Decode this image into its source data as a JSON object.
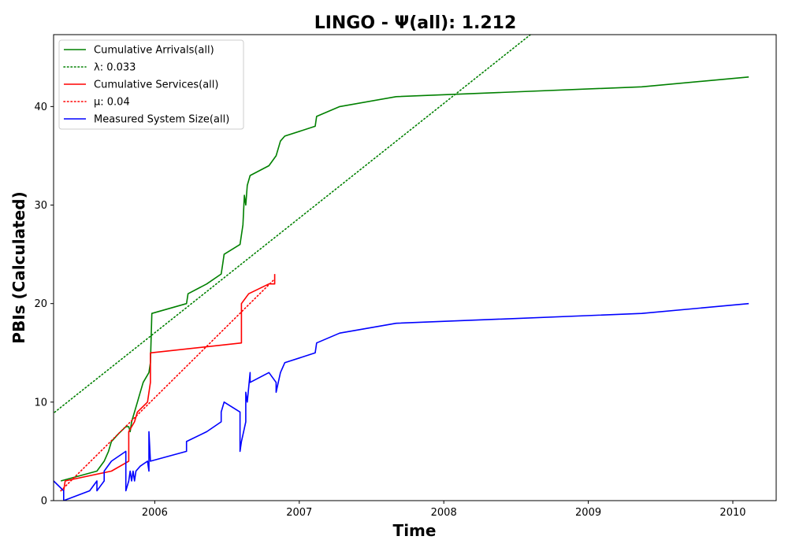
{
  "chart_data": {
    "type": "line",
    "title": "LINGO -  Ψ(all): 1.212",
    "xlabel": "Time",
    "ylabel": "PBIs (Calculated)",
    "xlim": [
      2005.3,
      2010.3
    ],
    "ylim": [
      0,
      47.3
    ],
    "x_ticks": [
      {
        "value": 2006,
        "label": "2006"
      },
      {
        "value": 2007,
        "label": "2007"
      },
      {
        "value": 2008,
        "label": "2008"
      },
      {
        "value": 2009,
        "label": "2009"
      },
      {
        "value": 2010,
        "label": "2010"
      }
    ],
    "y_ticks": [
      {
        "value": 0,
        "label": "0"
      },
      {
        "value": 10,
        "label": "10"
      },
      {
        "value": 20,
        "label": "20"
      },
      {
        "value": 30,
        "label": "30"
      },
      {
        "value": 40,
        "label": "40"
      }
    ],
    "legend_position": "top-left",
    "series": [
      {
        "name": "Cumulative Arrivals(all)",
        "legend": "Cumulative Arrivals(all)",
        "color": "#008000",
        "style": "solid",
        "points": [
          [
            2005.35,
            2
          ],
          [
            2005.6,
            3
          ],
          [
            2005.65,
            4
          ],
          [
            2005.68,
            5
          ],
          [
            2005.7,
            6
          ],
          [
            2005.75,
            6.8
          ],
          [
            2005.8,
            7.5
          ],
          [
            2005.82,
            7.5
          ],
          [
            2005.83,
            7
          ],
          [
            2005.84,
            8
          ],
          [
            2005.86,
            9
          ],
          [
            2005.88,
            10
          ],
          [
            2005.9,
            11
          ],
          [
            2005.92,
            12
          ],
          [
            2005.96,
            13
          ],
          [
            2005.97,
            14
          ],
          [
            2005.98,
            19
          ],
          [
            2006.22,
            20
          ],
          [
            2006.23,
            21
          ],
          [
            2006.36,
            22
          ],
          [
            2006.46,
            23
          ],
          [
            2006.47,
            24
          ],
          [
            2006.48,
            25
          ],
          [
            2006.59,
            26
          ],
          [
            2006.61,
            28
          ],
          [
            2006.62,
            31
          ],
          [
            2006.63,
            30
          ],
          [
            2006.64,
            32
          ],
          [
            2006.66,
            33
          ],
          [
            2006.79,
            34
          ],
          [
            2006.84,
            35
          ],
          [
            2006.87,
            36.5
          ],
          [
            2006.9,
            37
          ],
          [
            2007.11,
            38
          ],
          [
            2007.12,
            39
          ],
          [
            2007.28,
            40
          ],
          [
            2007.67,
            41
          ],
          [
            2009.37,
            42
          ],
          [
            2010.11,
            43
          ]
        ]
      },
      {
        "name": "lambda-fit",
        "legend": "λ: 0.033",
        "color": "#008000",
        "style": "dotted",
        "points": [
          [
            2005.25,
            8.3
          ],
          [
            2008.6,
            47.3
          ]
        ]
      },
      {
        "name": "Cumulative Services(all)",
        "legend": "Cumulative Services(all)",
        "color": "#ff0000",
        "style": "solid",
        "points": [
          [
            2005.37,
            1
          ],
          [
            2005.38,
            2
          ],
          [
            2005.7,
            3
          ],
          [
            2005.82,
            4
          ],
          [
            2005.82,
            7
          ],
          [
            2005.86,
            8
          ],
          [
            2005.88,
            9
          ],
          [
            2005.95,
            10
          ],
          [
            2005.97,
            12
          ],
          [
            2005.97,
            15
          ],
          [
            2006.6,
            16
          ],
          [
            2006.6,
            20
          ],
          [
            2006.65,
            21
          ],
          [
            2006.79,
            22
          ],
          [
            2006.83,
            22
          ],
          [
            2006.83,
            23
          ]
        ]
      },
      {
        "name": "mu-fit",
        "legend": "μ: 0.04",
        "color": "#ff0000",
        "style": "dotted",
        "points": [
          [
            2005.35,
            1
          ],
          [
            2006.83,
            22.5
          ]
        ]
      },
      {
        "name": "Measured System Size(all)",
        "legend": "Measured System Size(all)",
        "color": "#0000ff",
        "style": "solid",
        "points": [
          [
            2005.25,
            1
          ],
          [
            2005.3,
            2
          ],
          [
            2005.37,
            1
          ],
          [
            2005.37,
            0
          ],
          [
            2005.55,
            1
          ],
          [
            2005.6,
            2
          ],
          [
            2005.6,
            1
          ],
          [
            2005.65,
            2
          ],
          [
            2005.65,
            3
          ],
          [
            2005.7,
            4
          ],
          [
            2005.8,
            5
          ],
          [
            2005.8,
            1
          ],
          [
            2005.82,
            2
          ],
          [
            2005.83,
            3
          ],
          [
            2005.84,
            2
          ],
          [
            2005.85,
            3
          ],
          [
            2005.86,
            2
          ],
          [
            2005.87,
            3
          ],
          [
            2005.9,
            3.5
          ],
          [
            2005.95,
            4
          ],
          [
            2005.96,
            3
          ],
          [
            2005.96,
            7
          ],
          [
            2005.97,
            4
          ],
          [
            2006.22,
            5
          ],
          [
            2006.22,
            6
          ],
          [
            2006.36,
            7
          ],
          [
            2006.46,
            8
          ],
          [
            2006.46,
            9
          ],
          [
            2006.48,
            10
          ],
          [
            2006.59,
            9
          ],
          [
            2006.59,
            5
          ],
          [
            2006.6,
            6
          ],
          [
            2006.63,
            8
          ],
          [
            2006.63,
            11
          ],
          [
            2006.64,
            10
          ],
          [
            2006.66,
            13
          ],
          [
            2006.66,
            12
          ],
          [
            2006.79,
            13
          ],
          [
            2006.84,
            12
          ],
          [
            2006.84,
            11
          ],
          [
            2006.87,
            13
          ],
          [
            2006.9,
            14
          ],
          [
            2007.11,
            15
          ],
          [
            2007.12,
            16
          ],
          [
            2007.28,
            17
          ],
          [
            2007.67,
            18
          ],
          [
            2009.37,
            19
          ],
          [
            2010.11,
            20
          ]
        ]
      }
    ]
  }
}
